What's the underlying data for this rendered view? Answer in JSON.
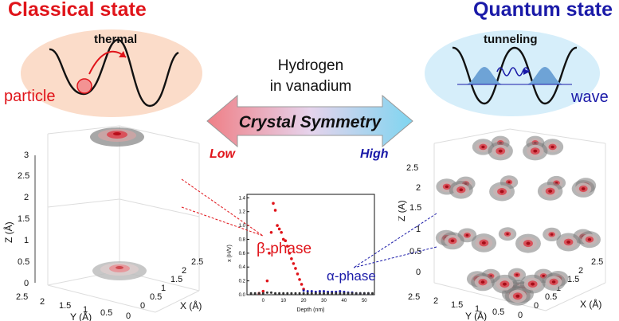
{
  "classical": {
    "title": "Classical state",
    "mechanism": "thermal",
    "entity": "particle",
    "color": "#e0141a"
  },
  "quantum": {
    "title": "Quantum state",
    "mechanism": "tunneling",
    "entity": "wave",
    "color": "#1a1aa8"
  },
  "center": {
    "line1": "Hydrogen",
    "line2": "in vanadium",
    "arrow_label": "Crystal Symmetry",
    "low": "Low",
    "high": "High"
  },
  "left_plot": {
    "z_axis_label": "Z (Å)",
    "y_axis_label": "Y (Å)",
    "x_axis_label": "X (Å)",
    "z_ticks": [
      "0",
      "0.5",
      "1",
      "1.5",
      "2",
      "2.5",
      "3"
    ],
    "y_ticks": [
      "2.5",
      "2",
      "1.5",
      "1",
      "0.5",
      "0"
    ],
    "x_ticks": [
      "0",
      "0.5",
      "1",
      "1.5",
      "2",
      "2.5"
    ]
  },
  "right_plot": {
    "z_axis_label": "Z (Å)",
    "y_axis_label": "Y (Å)",
    "x_axis_label": "X (Å)",
    "z_ticks": [
      "0",
      "0.5",
      "1",
      "1.5",
      "2",
      "2.5"
    ],
    "y_ticks": [
      "2.5",
      "2",
      "1.5",
      "1",
      "0.5",
      "0"
    ],
    "x_ticks": [
      "0",
      "0.5",
      "1",
      "1.5",
      "2",
      "2.5"
    ]
  },
  "chart_data": {
    "type": "scatter",
    "xlabel": "Depth (nm)",
    "ylabel": "x (H/V)",
    "xlim": [
      -8,
      55
    ],
    "ylim": [
      0,
      1.45
    ],
    "x_ticks": [
      0,
      10,
      20,
      30,
      40,
      50
    ],
    "y_ticks": [
      0,
      0.2,
      0.4,
      0.6,
      0.8,
      1.0,
      1.2,
      1.4
    ],
    "annotations": [
      "β-phase",
      "α-phase"
    ],
    "series": [
      {
        "color": "#e0141a",
        "x": [
          -2,
          0,
          2,
          3,
          4,
          5,
          6,
          7,
          8,
          9,
          10,
          11,
          12,
          13,
          14,
          15,
          16,
          17,
          18,
          19,
          20
        ],
        "y": [
          0.02,
          0.05,
          0.2,
          0.6,
          0.9,
          1.32,
          1.22,
          1.0,
          0.95,
          0.9,
          0.8,
          0.78,
          0.7,
          0.6,
          0.52,
          0.45,
          0.38,
          0.3,
          0.22,
          0.15,
          0.08
        ]
      },
      {
        "color": "#1a1aa8",
        "x": [
          20,
          22,
          24,
          26,
          28,
          30,
          32,
          34,
          36,
          38,
          40,
          42,
          44,
          46,
          48,
          50,
          52
        ],
        "y": [
          0.06,
          0.05,
          0.05,
          0.04,
          0.05,
          0.05,
          0.04,
          0.04,
          0.04,
          0.05,
          0.04,
          0.03,
          0.03,
          0.02,
          0.02,
          0.02,
          0.02
        ]
      },
      {
        "color": "#333333",
        "x": [
          -6,
          -4,
          -2,
          0,
          2,
          4,
          6,
          8,
          10,
          12,
          14,
          16,
          18,
          20,
          22,
          24,
          26,
          28,
          30,
          32,
          34,
          36,
          38,
          40,
          42,
          44,
          46,
          48,
          50,
          52,
          54
        ],
        "y": [
          0.02,
          0.02,
          0.02,
          0.02,
          0.03,
          0.03,
          0.02,
          0.02,
          0.02,
          0.02,
          0.02,
          0.02,
          0.02,
          0.02,
          0.02,
          0.02,
          0.02,
          0.02,
          0.02,
          0.02,
          0.02,
          0.02,
          0.02,
          0.02,
          0.02,
          0.02,
          0.02,
          0.02,
          0.02,
          0.02,
          0.02
        ]
      }
    ]
  }
}
